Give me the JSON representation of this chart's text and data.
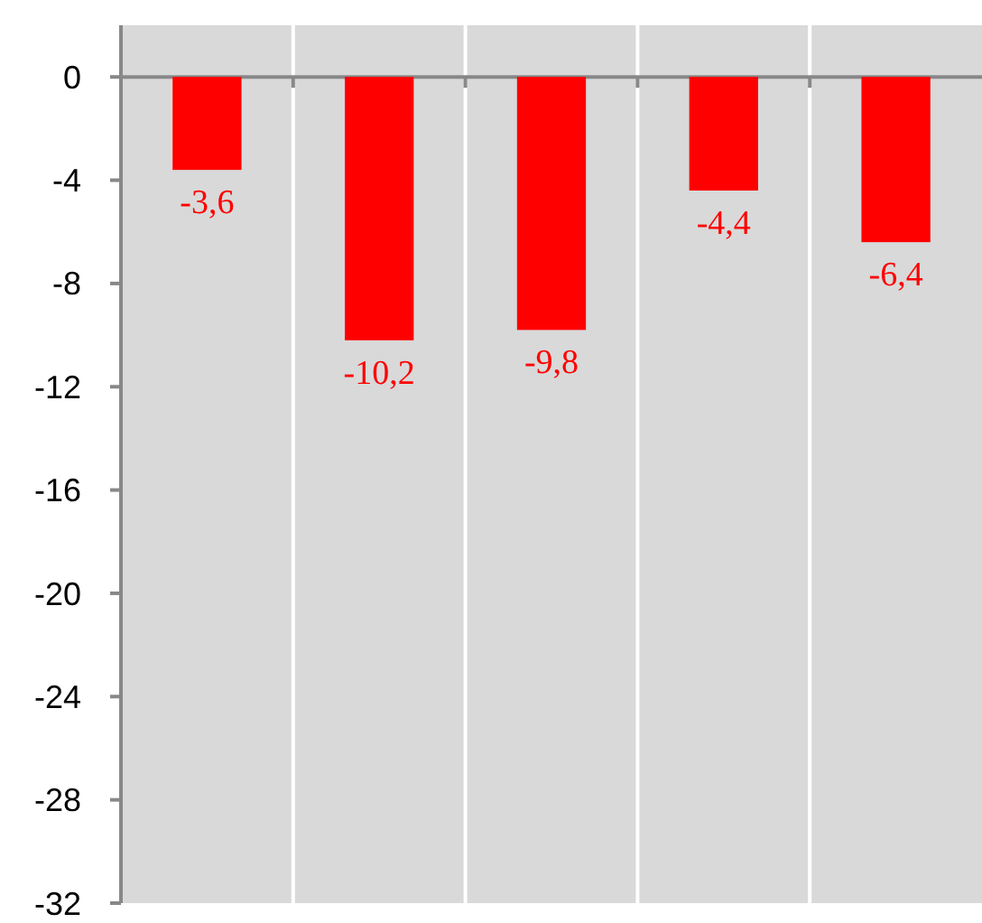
{
  "chart_data": {
    "type": "bar",
    "categories": [
      null,
      null,
      null,
      null,
      null
    ],
    "values": [
      -3.6,
      -10.2,
      -9.8,
      -4.4,
      -6.4
    ],
    "color": "#ff0000",
    "value_labels": [
      "-3,6",
      "-10,2",
      "-9,8",
      "-4,4",
      "-6,4"
    ],
    "ylim": [
      -32,
      2
    ],
    "yticks": [
      0,
      -4,
      -8,
      -12,
      -16,
      -20,
      -24,
      -28,
      -32
    ],
    "grid": "x"
  }
}
